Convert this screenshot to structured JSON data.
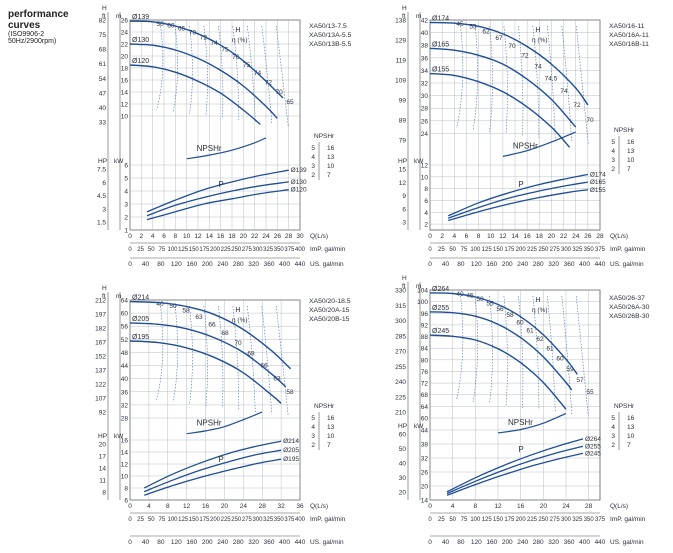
{
  "heading": {
    "line1": "performance",
    "line2": "curves",
    "line3": "(ISO9906-2",
    "line4": "50Hz/2900rpm)"
  },
  "colors": {
    "curve": "#1f4e96",
    "eff": "#4a6fb0",
    "grid": "#9aa4b4",
    "text": "#2a2f3a"
  },
  "chart_data": [
    {
      "type": "line",
      "models": [
        "XA50/13-7.5",
        "XA50/13A-5.5",
        "XA50/13B-5.5"
      ],
      "xlabel": "Q(L/s)",
      "xlim": [
        0,
        30
      ],
      "x_ticks": [
        0,
        2,
        4,
        6,
        8,
        10,
        12,
        14,
        16,
        18,
        20,
        22,
        24,
        26,
        28,
        30
      ],
      "imp_ticks": [
        0,
        25,
        50,
        75,
        100,
        125,
        150,
        175,
        200,
        225,
        250,
        275,
        300,
        325,
        350,
        375,
        400
      ],
      "imp_label": "ImP. gal/min",
      "us_ticks": [
        0,
        40,
        80,
        120,
        160,
        200,
        240,
        280,
        320,
        360,
        400,
        440
      ],
      "us_label": "US. gal/min",
      "head": {
        "ylim": [
          8,
          26
        ],
        "y_label_m": "m",
        "y_label_ft": "ft",
        "y_label_h": "H",
        "m_ticks": [
          10,
          12,
          14,
          16,
          18,
          20,
          22,
          24,
          26
        ],
        "ft_ticks": [
          33,
          40,
          47,
          54,
          61,
          68,
          75,
          82
        ],
        "series": [
          {
            "name": "Ø139",
            "x": [
              0,
              4,
              8,
              12,
              16,
              20,
              24,
              27
            ],
            "y": [
              25.8,
              25.7,
              25.0,
              23.7,
              21.8,
              19.2,
              15.8,
              13.0
            ]
          },
          {
            "name": "Ø130",
            "x": [
              0,
              4,
              8,
              12,
              16,
              20,
              24,
              26
            ],
            "y": [
              22.0,
              21.8,
              21.0,
              19.6,
              17.6,
              15.0,
              11.6,
              9.6
            ]
          },
          {
            "name": "Ø120",
            "x": [
              0,
              4,
              8,
              12,
              16,
              20,
              23
            ],
            "y": [
              18.5,
              18.2,
              17.3,
              15.8,
              13.8,
              11.0,
              8.6
            ]
          }
        ],
        "eff_label": "η (%)",
        "eff_values": [
          "50",
          "60",
          "65",
          "70",
          "72",
          "74",
          "75",
          "76",
          "75",
          "74",
          "72",
          "70",
          "65"
        ]
      },
      "npsh": {
        "label": "NPSHr",
        "m_ticks": [
          2,
          3,
          4,
          5
        ],
        "ft_ticks": [
          7,
          10,
          13,
          16
        ],
        "series": {
          "x": [
            10,
            14,
            18,
            22,
            24
          ],
          "y": [
            1.0,
            1.6,
            2.4,
            3.6,
            4.4
          ]
        }
      },
      "power": {
        "label": "P",
        "kw_ticks": [
          1,
          2,
          3,
          4,
          5,
          6
        ],
        "hp_ticks": [
          1.5,
          3,
          4.5,
          6,
          7.5
        ],
        "ylim": [
          1,
          6
        ],
        "series": [
          {
            "name": "Ø139",
            "x": [
              3,
              8,
              13,
              18,
              23,
              28
            ],
            "y": [
              2.4,
              3.3,
              4.1,
              4.7,
              5.2,
              5.6
            ]
          },
          {
            "name": "Ø130",
            "x": [
              3,
              8,
              13,
              18,
              23,
              28
            ],
            "y": [
              2.1,
              2.9,
              3.5,
              4.0,
              4.4,
              4.7
            ]
          },
          {
            "name": "Ø120",
            "x": [
              3,
              8,
              13,
              18,
              23,
              28
            ],
            "y": [
              1.8,
              2.4,
              3.0,
              3.4,
              3.8,
              4.1
            ]
          }
        ]
      }
    },
    {
      "type": "line",
      "models": [
        "XA50/16-11",
        "XA50/16A-11",
        "XA50/16B-11"
      ],
      "xlabel": "Q(L/s)",
      "xlim": [
        0,
        28
      ],
      "x_ticks": [
        0,
        2,
        4,
        6,
        8,
        10,
        12,
        14,
        16,
        18,
        20,
        22,
        24,
        26,
        28
      ],
      "imp_ticks": [
        0,
        25,
        50,
        75,
        100,
        125,
        150,
        175,
        200,
        225,
        250,
        275,
        300,
        325,
        350,
        375
      ],
      "imp_label": "ImP. gal/min",
      "us_ticks": [
        0,
        40,
        80,
        120,
        160,
        200,
        240,
        280,
        320,
        360,
        400,
        440
      ],
      "us_label": "US. gal/min",
      "head": {
        "ylim": [
          22,
          42
        ],
        "y_label_m": "m",
        "y_label_ft": "ft",
        "y_label_h": "H",
        "m_ticks": [
          24,
          26,
          28,
          30,
          32,
          34,
          36,
          38,
          40,
          42
        ],
        "ft_ticks": [
          79,
          89,
          99,
          109,
          119,
          129,
          138
        ],
        "series": [
          {
            "name": "Ø174",
            "x": [
              0,
              4,
              8,
              12,
              16,
              20,
              24,
              26
            ],
            "y": [
              41.6,
              41.5,
              41.0,
              39.8,
              37.8,
              35.0,
              31.2,
              28.5
            ]
          },
          {
            "name": "Ø165",
            "x": [
              0,
              4,
              8,
              12,
              16,
              20,
              24
            ],
            "y": [
              37.5,
              37.2,
              36.4,
              35.0,
              32.6,
              29.4,
              25.0
            ]
          },
          {
            "name": "Ø155",
            "x": [
              0,
              4,
              8,
              12,
              16,
              20,
              23
            ],
            "y": [
              33.5,
              33.2,
              32.2,
              30.6,
              28.2,
              25.0,
              21.8
            ]
          }
        ],
        "eff_label": "η (%)",
        "eff_values": [
          "45",
          "55",
          "62",
          "67",
          "70",
          "72",
          "74",
          "74.5",
          "74",
          "72",
          "70"
        ]
      },
      "npsh": {
        "label": "NPSHr",
        "m_ticks": [
          2,
          3,
          4,
          5
        ],
        "ft_ticks": [
          7,
          10,
          13,
          16
        ],
        "series": {
          "x": [
            12,
            16,
            20,
            24
          ],
          "y": [
            1.2,
            2.0,
            3.2,
            4.6
          ]
        }
      },
      "power": {
        "label": "P",
        "kw_ticks": [
          2,
          4,
          6,
          8,
          10,
          12
        ],
        "hp_ticks": [
          3,
          6,
          9,
          12,
          15
        ],
        "ylim": [
          1,
          12
        ],
        "series": [
          {
            "name": "Ø174",
            "x": [
              3,
              8,
              13,
              18,
              23,
              26
            ],
            "y": [
              3.4,
              5.6,
              7.3,
              8.7,
              9.8,
              10.4
            ]
          },
          {
            "name": "Ø165",
            "x": [
              3,
              8,
              13,
              18,
              23,
              26
            ],
            "y": [
              3.0,
              4.8,
              6.4,
              7.6,
              8.6,
              9.1
            ]
          },
          {
            "name": "Ø155",
            "x": [
              3,
              8,
              13,
              18,
              23,
              26
            ],
            "y": [
              2.6,
              4.1,
              5.4,
              6.5,
              7.4,
              7.8
            ]
          }
        ]
      }
    },
    {
      "type": "line",
      "models": [
        "XA50/20-18.5",
        "XA50/20A-15",
        "XA50/20B-15"
      ],
      "xlabel": "Q(L/s)",
      "xlim": [
        0,
        36
      ],
      "x_ticks": [
        0,
        4,
        8,
        12,
        16,
        20,
        24,
        28,
        32,
        36
      ],
      "imp_ticks": [
        0,
        25,
        50,
        75,
        100,
        125,
        150,
        175,
        200,
        225,
        250,
        275,
        300,
        325,
        350,
        375,
        400
      ],
      "imp_label": "ImP. gal/min",
      "us_ticks": [
        0,
        40,
        80,
        120,
        160,
        200,
        240,
        280,
        320,
        360,
        400,
        440
      ],
      "us_label": "US. gal/min",
      "head": {
        "ylim": [
          28,
          64
        ],
        "y_label_m": "m",
        "y_label_ft": "ft",
        "y_label_h": "H",
        "m_ticks": [
          28,
          32,
          36,
          40,
          44,
          48,
          52,
          56,
          60,
          64
        ],
        "ft_ticks": [
          92,
          107,
          122,
          137,
          152,
          167,
          182,
          197,
          212
        ],
        "series": [
          {
            "name": "Ø214",
            "x": [
              0,
              6,
              12,
              18,
              24,
              30,
              34
            ],
            "y": [
              63.5,
              63.2,
              62.0,
              59.5,
              55.0,
              48.5,
              43.0
            ]
          },
          {
            "name": "Ø205",
            "x": [
              0,
              6,
              12,
              18,
              24,
              30,
              33
            ],
            "y": [
              57.0,
              56.6,
              55.2,
              52.4,
              48.0,
              41.4,
              37.5
            ]
          },
          {
            "name": "Ø195",
            "x": [
              0,
              6,
              12,
              18,
              24,
              30,
              32
            ],
            "y": [
              51.5,
              51.0,
              49.4,
              46.4,
              41.8,
              35.0,
              32.5
            ]
          }
        ],
        "eff_label": "η (%)",
        "eff_values": [
          "40",
          "50",
          "58",
          "63",
          "66",
          "68",
          "70",
          "68",
          "66",
          "63",
          "58"
        ]
      },
      "npsh": {
        "label": "NPSHr",
        "m_ticks": [
          2,
          3,
          4,
          5
        ],
        "ft_ticks": [
          7,
          10,
          13,
          16
        ],
        "series": {
          "x": [
            12,
            16,
            20,
            24,
            28
          ],
          "y": [
            0.9,
            1.3,
            1.9,
            2.9,
            4.0
          ]
        }
      },
      "power": {
        "label": "P",
        "kw_ticks": [
          6,
          8,
          10,
          12,
          14,
          16
        ],
        "hp_ticks": [
          8,
          11,
          14,
          17,
          20
        ],
        "ylim": [
          6,
          16
        ],
        "series": [
          {
            "name": "Ø214",
            "x": [
              3,
              9,
              15,
              21,
              27,
              32
            ],
            "y": [
              8.0,
              10.3,
              12.2,
              13.8,
              15.0,
              15.8
            ]
          },
          {
            "name": "Ø205",
            "x": [
              3,
              9,
              15,
              21,
              27,
              32
            ],
            "y": [
              7.4,
              9.3,
              11.0,
              12.4,
              13.6,
              14.3
            ]
          },
          {
            "name": "Ø195",
            "x": [
              3,
              9,
              15,
              21,
              27,
              32
            ],
            "y": [
              6.8,
              8.4,
              9.8,
              11.0,
              12.1,
              12.8
            ]
          }
        ]
      }
    },
    {
      "type": "line",
      "models": [
        "XA50/26-37",
        "XA50/26A-30",
        "XA50/26B-30"
      ],
      "xlabel": "Q(L/s)",
      "xlim": [
        0,
        30
      ],
      "x_ticks": [
        0,
        4,
        8,
        12,
        16,
        20,
        24,
        28
      ],
      "imp_ticks": [
        0,
        25,
        50,
        75,
        100,
        125,
        150,
        175,
        200,
        225,
        250,
        275,
        300,
        325,
        350,
        375
      ],
      "imp_label": "ImP. gal/min",
      "us_ticks": [
        0,
        40,
        80,
        120,
        160,
        200,
        240,
        280,
        320,
        360,
        400,
        440
      ],
      "us_label": "US. gal/min",
      "head": {
        "ylim": [
          60,
          104
        ],
        "y_label_m": "m",
        "y_label_ft": "ft",
        "y_label_h": "H",
        "m_ticks": [
          60,
          64,
          68,
          72,
          76,
          80,
          84,
          88,
          92,
          96,
          100,
          104
        ],
        "ft_ticks": [
          210,
          225,
          240,
          255,
          270,
          285,
          300,
          315,
          330
        ],
        "series": [
          {
            "name": "Ø264",
            "x": [
              0,
              4,
              8,
              12,
              16,
              20,
              24,
              26
            ],
            "y": [
              103.0,
              102.8,
              101.6,
              99.0,
              94.8,
              88.6,
              80.2,
              75.0
            ]
          },
          {
            "name": "Ø255",
            "x": [
              0,
              4,
              8,
              12,
              16,
              20,
              24,
              25
            ],
            "y": [
              96.5,
              96.2,
              95.0,
              92.2,
              87.6,
              81.0,
              72.2,
              69.6
            ]
          },
          {
            "name": "Ø245",
            "x": [
              0,
              4,
              8,
              12,
              16,
              20,
              24
            ],
            "y": [
              88.5,
              88.1,
              86.8,
              83.8,
              79.0,
              72.2,
              63.0
            ]
          }
        ],
        "eff_label": "η (%)",
        "eff_values": [
          "40",
          "45",
          "50",
          "55",
          "56",
          "58",
          "60",
          "61",
          "62",
          "61",
          "60",
          "59",
          "57",
          "55"
        ]
      },
      "npsh": {
        "label": "NPSHr",
        "m_ticks": [
          2,
          3,
          4,
          5
        ],
        "ft_ticks": [
          7,
          10,
          13,
          16
        ],
        "series": {
          "x": [
            12,
            16,
            20,
            24
          ],
          "y": [
            1.0,
            1.5,
            2.4,
            3.8
          ]
        }
      },
      "power": {
        "label": "P",
        "kw_ticks": [
          14,
          20,
          26,
          32,
          38,
          44
        ],
        "hp_ticks": [
          20,
          30,
          40,
          50,
          60
        ],
        "ylim": [
          14,
          44
        ],
        "series": [
          {
            "name": "Ø264",
            "x": [
              3,
              8,
              13,
              18,
              23,
              27
            ],
            "y": [
              17.5,
              23.5,
              28.8,
              33.4,
              37.4,
              40.2
            ]
          },
          {
            "name": "Ø255",
            "x": [
              3,
              8,
              13,
              18,
              23,
              27
            ],
            "y": [
              16.8,
              22.0,
              26.8,
              31.0,
              34.6,
              37.0
            ]
          },
          {
            "name": "Ø245",
            "x": [
              3,
              8,
              13,
              18,
              23,
              27
            ],
            "y": [
              16.0,
              20.6,
              24.8,
              28.6,
              31.8,
              34.0
            ]
          }
        ]
      }
    }
  ]
}
